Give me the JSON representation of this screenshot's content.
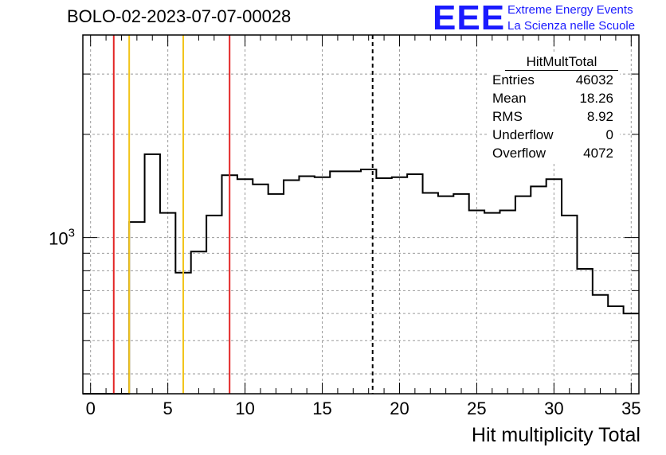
{
  "title": "BOLO-02-2023-07-07-00028",
  "logo": {
    "mark": "EEE",
    "line1": "Extreme Energy Events",
    "line2": "La Scienza nelle Scuole",
    "color": "#1a1aff"
  },
  "stats_box": {
    "title": "HitMultTotal",
    "rows": [
      {
        "label": "Entries",
        "value": "46032"
      },
      {
        "label": "Mean",
        "value": "18.26"
      },
      {
        "label": "RMS",
        "value": "8.92"
      },
      {
        "label": "Underflow",
        "value": "0"
      },
      {
        "label": "Overflow",
        "value": "4072"
      }
    ]
  },
  "chart_data": {
    "type": "histogram",
    "title": "BOLO-02-2023-07-07-00028",
    "xlabel": "Hit multiplicity Total",
    "ylabel": "",
    "xlim": [
      -0.5,
      35.5
    ],
    "ylim": [
      350,
      3900
    ],
    "y_scale": "log",
    "grid": true,
    "x_ticks": [
      0,
      5,
      10,
      15,
      20,
      25,
      30,
      35
    ],
    "y_tick_labels": [
      {
        "value": 1000,
        "base": "10",
        "exp": "3"
      }
    ],
    "bin_edges": [
      -0.5,
      0.5,
      1.5,
      2.5,
      3.5,
      4.5,
      5.5,
      6.5,
      7.5,
      8.5,
      9.5,
      10.5,
      11.5,
      12.5,
      13.5,
      14.5,
      15.5,
      16.5,
      17.5,
      18.5,
      19.5,
      20.5,
      21.5,
      22.5,
      23.5,
      24.5,
      25.5,
      26.5,
      27.5,
      28.5,
      29.5,
      30.5,
      31.5,
      32.5,
      33.5,
      34.5,
      35.5
    ],
    "counts": [
      0,
      0,
      0,
      1110,
      1750,
      1180,
      790,
      910,
      1160,
      1520,
      1480,
      1430,
      1340,
      1470,
      1510,
      1500,
      1560,
      1560,
      1580,
      1490,
      1500,
      1530,
      1350,
      1320,
      1340,
      1200,
      1180,
      1200,
      1320,
      1410,
      1480,
      1160,
      810,
      680,
      630,
      600
    ],
    "vertical_lines": [
      {
        "x": 1.5,
        "color": "#e32626",
        "style": "solid"
      },
      {
        "x": 2.5,
        "color": "#f2c41a",
        "style": "solid"
      },
      {
        "x": 6.0,
        "color": "#f2c41a",
        "style": "solid"
      },
      {
        "x": 9.0,
        "color": "#e32626",
        "style": "solid"
      },
      {
        "x": 18.26,
        "color": "#000000",
        "style": "dashed"
      }
    ],
    "line_color": "#000000"
  }
}
